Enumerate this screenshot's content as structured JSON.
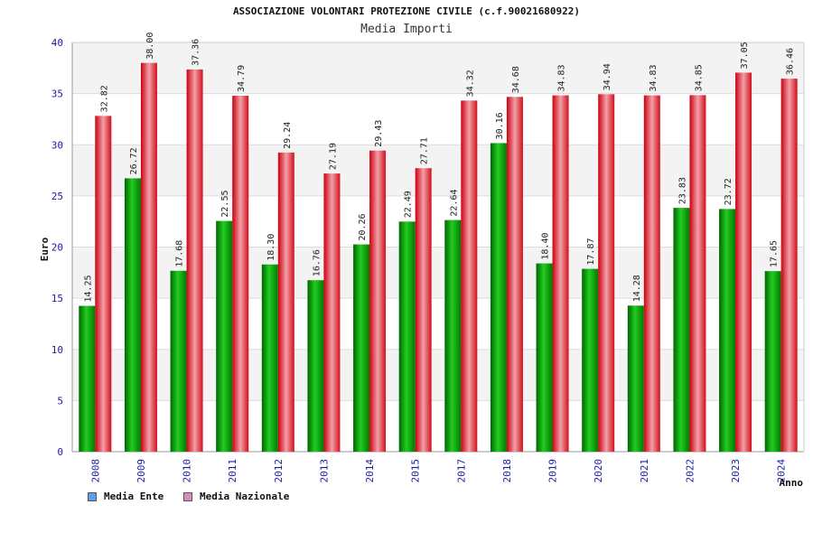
{
  "chart_data": {
    "type": "bar",
    "title": "ASSOCIAZIONE VOLONTARI PROTEZIONE CIVILE (c.f.90021680922)",
    "subtitle": "Media Importi",
    "ylabel": "Euro",
    "xlabel": "Anno",
    "ylim": [
      0,
      40
    ],
    "yticks": [
      "0",
      "5",
      "10",
      "15",
      "20",
      "25",
      "30",
      "35",
      "40"
    ],
    "categories": [
      "2008",
      "2009",
      "2010",
      "2011",
      "2012",
      "2013",
      "2014",
      "2015",
      "2017",
      "2018",
      "2019",
      "2020",
      "2021",
      "2022",
      "2023",
      "2024"
    ],
    "series": [
      {
        "name": "Media Ente",
        "color": "#00aa00",
        "legend_color": "#5b9ee6",
        "values": [
          14.25,
          26.72,
          17.68,
          22.55,
          18.3,
          16.76,
          20.26,
          22.49,
          22.64,
          30.16,
          18.4,
          17.87,
          14.28,
          23.83,
          23.72,
          17.65
        ],
        "labels": [
          "14.25",
          "26.72",
          "17.68",
          "22.55",
          "18.30",
          "16.76",
          "20.26",
          "22.49",
          "22.64",
          "30.16",
          "18.40",
          "17.87",
          "14.28",
          "23.83",
          "23.72",
          "17.65"
        ]
      },
      {
        "name": "Media Nazionale",
        "color": "#e8131c",
        "legend_color": "#d98cc0",
        "values": [
          32.82,
          38.0,
          37.36,
          34.79,
          29.24,
          27.19,
          29.43,
          27.71,
          34.32,
          34.68,
          34.83,
          34.94,
          34.83,
          34.85,
          37.05,
          36.46
        ],
        "labels": [
          "32.82",
          "38.00",
          "37.36",
          "34.79",
          "29.24",
          "27.19",
          "29.43",
          "27.71",
          "34.32",
          "34.68",
          "34.83",
          "34.94",
          "34.83",
          "34.85",
          "37.05",
          "36.46"
        ]
      }
    ],
    "grid": true,
    "legend_position": "bottom-left"
  }
}
